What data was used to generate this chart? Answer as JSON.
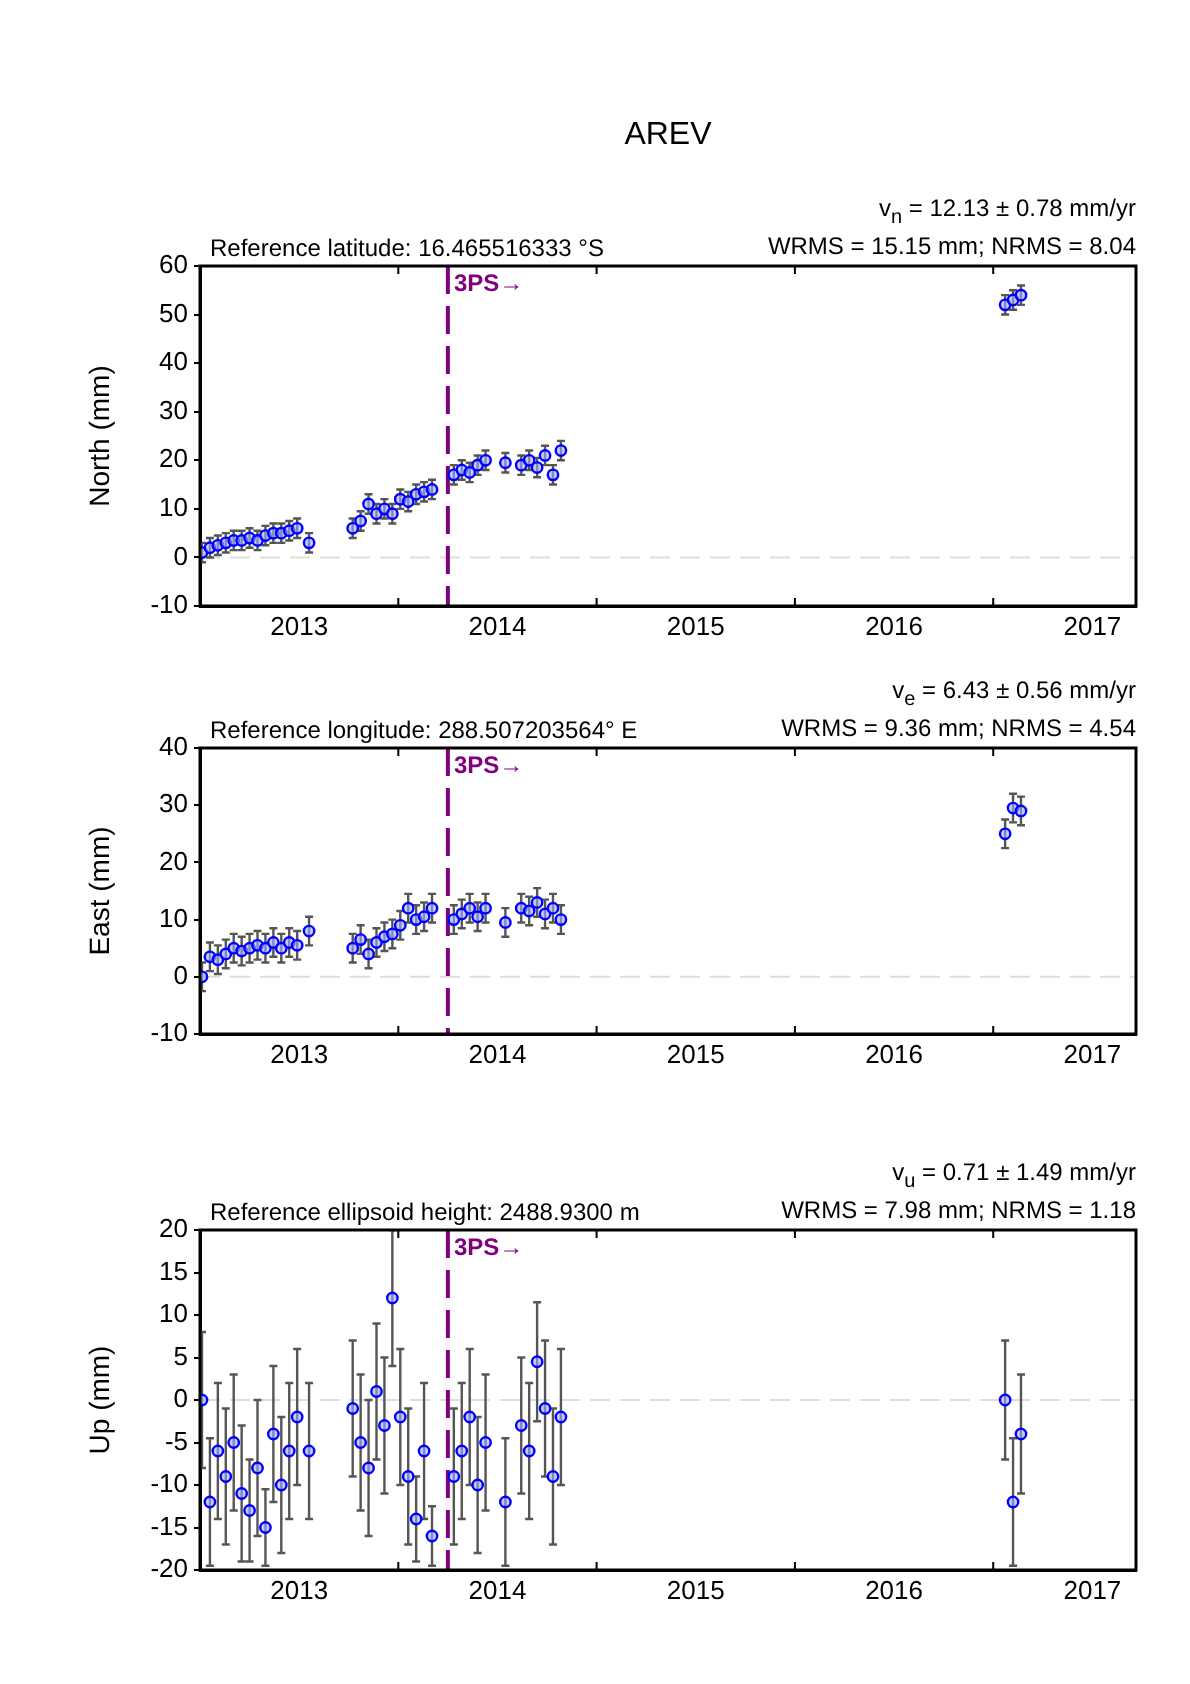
{
  "chart_data": [
    {
      "type": "scatter",
      "title": "AREV",
      "ylabel": "North (mm)",
      "annotations": [
        "Reference latitude: 16.465516333 °S",
        "v$_{n}$ = 12.13 ± 0.78 mm/yr",
        "WRMS = 15.15 mm; NRMS = 8.04"
      ],
      "x": [
        2013.01,
        2013.05,
        2013.09,
        2013.13,
        2013.17,
        2013.21,
        2013.25,
        2013.29,
        2013.33,
        2013.37,
        2013.41,
        2013.45,
        2013.49,
        2013.55,
        2013.77,
        2013.81,
        2013.85,
        2013.89,
        2013.93,
        2013.97,
        2014.01,
        2014.05,
        2014.09,
        2014.13,
        2014.17,
        2014.28,
        2014.32,
        2014.36,
        2014.4,
        2014.44,
        2014.54,
        2014.62,
        2014.66,
        2014.7,
        2014.74,
        2014.78,
        2014.82,
        2017.06,
        2017.1,
        2017.14
      ],
      "values": [
        1,
        2,
        2.5,
        3,
        3.5,
        3.5,
        4,
        3.5,
        4.5,
        5,
        5,
        5.5,
        6,
        3,
        6,
        7.5,
        11,
        9,
        10,
        9,
        12,
        11.5,
        13,
        13.5,
        14,
        17,
        18,
        17.5,
        19,
        20,
        19.5,
        19,
        20,
        18.5,
        21,
        17,
        22,
        52,
        53,
        54
      ],
      "errors": [
        2,
        2,
        2,
        2,
        2,
        2,
        2,
        2,
        2,
        2,
        2,
        2,
        2,
        2,
        2,
        2,
        2,
        2,
        2,
        2,
        2,
        2,
        2,
        2,
        2,
        2,
        2,
        2,
        2,
        2,
        2,
        2,
        2,
        2,
        2,
        2,
        2,
        2,
        2,
        2
      ],
      "color": "#0000ff",
      "marker": "circle",
      "grid": false,
      "legend": false,
      "xlim": [
        2013.0,
        2017.72
      ],
      "xticks": [
        {
          "value": 2013.5,
          "label": "2013"
        },
        {
          "value": 2014,
          "label": null
        },
        {
          "value": 2014.5,
          "label": "2014"
        },
        {
          "value": 2015,
          "label": null
        },
        {
          "value": 2015.5,
          "label": "2015"
        },
        {
          "value": 2016,
          "label": null
        },
        {
          "value": 2016.5,
          "label": "2016"
        },
        {
          "value": 2017,
          "label": null
        },
        {
          "value": 2017.5,
          "label": "2017"
        }
      ],
      "ylim": [
        -10,
        60
      ],
      "yticks": [
        -10,
        0,
        10,
        20,
        30,
        40,
        50,
        60
      ],
      "ref_lines": [
        {
          "axis": "y",
          "value": 0,
          "label": null,
          "color": "#dddddd",
          "line_style": "dashed"
        },
        {
          "axis": "x",
          "value": 2014.25,
          "label": "3PS→",
          "color": "#800080",
          "line_style": "dashed"
        }
      ]
    },
    {
      "type": "scatter",
      "ylabel": "East (mm)",
      "annotations": [
        "Reference longitude: 288.507203564° E",
        "v$_{e}$ = 6.43 ± 0.56 mm/yr",
        "WRMS = 9.36 mm; NRMS = 4.54"
      ],
      "x": [
        2013.01,
        2013.05,
        2013.09,
        2013.13,
        2013.17,
        2013.21,
        2013.25,
        2013.29,
        2013.33,
        2013.37,
        2013.41,
        2013.45,
        2013.49,
        2013.55,
        2013.77,
        2013.81,
        2013.85,
        2013.89,
        2013.93,
        2013.97,
        2014.01,
        2014.05,
        2014.09,
        2014.13,
        2014.17,
        2014.28,
        2014.32,
        2014.36,
        2014.4,
        2014.44,
        2014.54,
        2014.62,
        2014.66,
        2014.7,
        2014.74,
        2014.78,
        2014.82,
        2017.06,
        2017.1,
        2017.14
      ],
      "values": [
        0,
        3.5,
        3,
        4,
        5,
        4.5,
        5,
        5.5,
        5,
        6,
        5,
        6,
        5.5,
        8,
        5,
        6.5,
        4,
        6,
        7,
        7.5,
        9,
        12,
        10,
        10.5,
        12,
        10,
        11,
        12,
        10.5,
        12,
        9.5,
        12,
        11.5,
        13,
        11,
        12,
        10,
        25,
        29.5,
        29
      ],
      "errors": [
        2.5,
        2.5,
        2.5,
        2.5,
        2.5,
        2.5,
        2.5,
        2.5,
        2.5,
        2.5,
        2.5,
        2.5,
        2.5,
        2.5,
        2.5,
        2.5,
        2.5,
        2.5,
        2.5,
        2.5,
        2.5,
        2.5,
        2.5,
        2.5,
        2.5,
        2.5,
        2.5,
        2.5,
        2.5,
        2.5,
        2.5,
        2.5,
        2.5,
        2.5,
        2.5,
        2.5,
        2.5,
        2.5,
        2.5,
        2.5
      ],
      "color": "#0000ff",
      "marker": "circle",
      "grid": false,
      "legend": false,
      "xlim": [
        2013.0,
        2017.72
      ],
      "xticks": [
        {
          "value": 2013.5,
          "label": "2013"
        },
        {
          "value": 2014,
          "label": null
        },
        {
          "value": 2014.5,
          "label": "2014"
        },
        {
          "value": 2015,
          "label": null
        },
        {
          "value": 2015.5,
          "label": "2015"
        },
        {
          "value": 2016,
          "label": null
        },
        {
          "value": 2016.5,
          "label": "2016"
        },
        {
          "value": 2017,
          "label": null
        },
        {
          "value": 2017.5,
          "label": "2017"
        }
      ],
      "ylim": [
        -10,
        40
      ],
      "yticks": [
        -10,
        0,
        10,
        20,
        30,
        40
      ],
      "ref_lines": [
        {
          "axis": "y",
          "value": 0,
          "label": null,
          "color": "#dddddd",
          "line_style": "dashed"
        },
        {
          "axis": "x",
          "value": 2014.25,
          "label": "3PS→",
          "color": "#800080",
          "line_style": "dashed"
        }
      ]
    },
    {
      "type": "scatter",
      "ylabel": "Up (mm)",
      "annotations": [
        "Reference ellipsoid height: 2488.9300 m",
        "v$_{u}$ = 0.71 ± 1.49 mm/yr",
        "WRMS = 7.98 mm; NRMS = 1.18"
      ],
      "x": [
        2013.01,
        2013.05,
        2013.09,
        2013.13,
        2013.17,
        2013.21,
        2013.25,
        2013.29,
        2013.33,
        2013.37,
        2013.41,
        2013.45,
        2013.49,
        2013.55,
        2013.77,
        2013.81,
        2013.85,
        2013.89,
        2013.93,
        2013.97,
        2014.01,
        2014.05,
        2014.09,
        2014.13,
        2014.17,
        2014.28,
        2014.32,
        2014.36,
        2014.4,
        2014.44,
        2014.54,
        2014.62,
        2014.66,
        2014.7,
        2014.74,
        2014.78,
        2014.82,
        2017.06,
        2017.1,
        2017.14
      ],
      "values": [
        0,
        -12,
        -6,
        -9,
        -5,
        -11,
        -13,
        -8,
        -15,
        -4,
        -10,
        -6,
        -2,
        -6,
        -1,
        -5,
        -8,
        1,
        -3,
        12,
        -2,
        -9,
        -14,
        -6,
        -16,
        -9,
        -6,
        -2,
        -10,
        -5,
        -12,
        -3,
        -6,
        4.5,
        -1,
        -9,
        -2,
        0,
        -12,
        -4
      ],
      "errors": [
        8,
        7.5,
        8,
        8,
        8,
        8,
        6,
        8,
        4.5,
        8,
        8,
        8,
        8,
        8,
        8,
        8,
        8,
        8,
        8,
        8,
        8,
        8,
        5,
        8,
        3.5,
        8,
        8,
        8,
        8,
        8,
        7.5,
        8,
        8,
        7,
        8,
        8,
        8,
        7,
        7.5,
        7
      ],
      "color": "#0000ff",
      "marker": "circle",
      "grid": false,
      "legend": false,
      "xlim": [
        2013.0,
        2017.72
      ],
      "xticks": [
        {
          "value": 2013.5,
          "label": "2013"
        },
        {
          "value": 2014,
          "label": null
        },
        {
          "value": 2014.5,
          "label": "2014"
        },
        {
          "value": 2015,
          "label": null
        },
        {
          "value": 2015.5,
          "label": "2015"
        },
        {
          "value": 2016,
          "label": null
        },
        {
          "value": 2016.5,
          "label": "2016"
        },
        {
          "value": 2017,
          "label": null
        },
        {
          "value": 2017.5,
          "label": "2017"
        }
      ],
      "ylim": [
        -20,
        20
      ],
      "yticks": [
        -20,
        -15,
        -10,
        -5,
        0,
        5,
        10,
        15,
        20
      ],
      "ref_lines": [
        {
          "axis": "y",
          "value": 0,
          "label": null,
          "color": "#dddddd",
          "line_style": "dashed"
        },
        {
          "axis": "x",
          "value": 2014.25,
          "label": "3PS→",
          "color": "#800080",
          "line_style": "dashed"
        }
      ]
    }
  ]
}
